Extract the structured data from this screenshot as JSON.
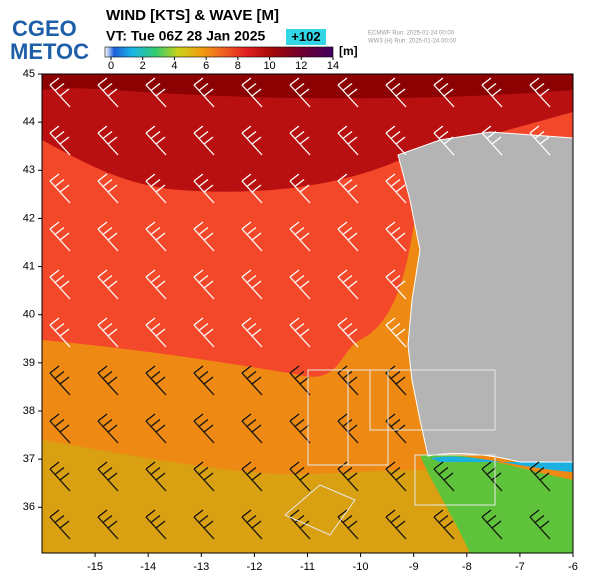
{
  "logo": {
    "line1": "CGEO",
    "line2": "METOC"
  },
  "header": {
    "title": "WIND [KTS] & WAVE [M]",
    "valid_time": "VT: Tue 06Z 28 Jan 2025",
    "forecast_hour": "+102",
    "runs": [
      "ECMWF  Run: 2025-01-24 00:00",
      "WW3 (H) Run: 2025-01-24 00:00"
    ]
  },
  "colorbar": {
    "unit": "[m]",
    "range": [
      0,
      14
    ],
    "ticks": [
      0,
      2,
      4,
      6,
      8,
      10,
      12,
      14
    ]
  },
  "map": {
    "xlim": [
      -16,
      -6
    ],
    "ylim": [
      35.05,
      45
    ],
    "xticks": [
      -15,
      -14,
      -13,
      -12,
      -11,
      -10,
      -9,
      -8,
      -7,
      -6
    ],
    "yticks": [
      36,
      37,
      38,
      39,
      40,
      41,
      42,
      43,
      44,
      45
    ]
  }
}
